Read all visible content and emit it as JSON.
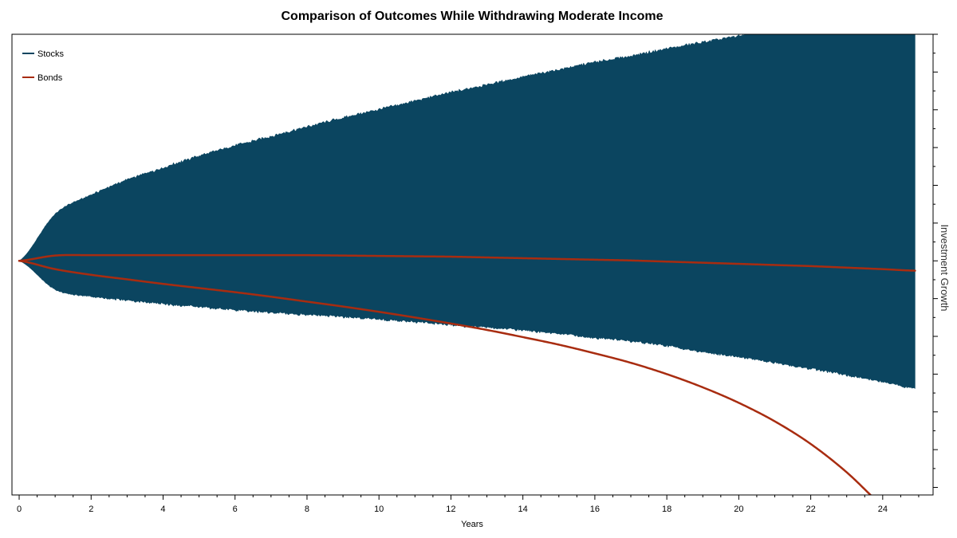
{
  "chart_data": {
    "type": "area",
    "title": "Comparison of Outcomes While Withdrawing Moderate Income",
    "xlabel": "Years",
    "ylabel": "Investment Growth",
    "xlim": [
      -0.2,
      25.4
    ],
    "ylim": [
      -6.2,
      6.0
    ],
    "x_ticks_major": [
      0,
      2,
      4,
      6,
      8,
      10,
      12,
      14,
      16,
      18,
      20,
      22,
      24
    ],
    "x_tick_labels": [
      "0",
      "2",
      "4",
      "6",
      "8",
      "10",
      "12",
      "14",
      "16",
      "18",
      "20",
      "22",
      "24"
    ],
    "y_ticks": [
      -6,
      -5,
      -4,
      -3,
      -2,
      -1,
      0,
      1,
      2,
      3,
      4,
      5,
      6
    ],
    "y_tick_labels_visible": false,
    "y_axis_side": "right",
    "grid": false,
    "legend": {
      "position": "top-left",
      "entries": [
        {
          "name": "Stocks",
          "color": "#0b4560"
        },
        {
          "name": "Bonds",
          "color": "#a82c10"
        }
      ]
    },
    "series": [
      {
        "name": "Stocks",
        "kind": "band",
        "color": "#0b4560",
        "x": [
          0,
          1,
          2,
          3,
          4,
          5,
          6,
          7,
          8,
          9,
          10,
          11,
          12,
          13,
          14,
          15,
          16,
          17,
          18,
          19,
          20,
          21,
          22,
          23,
          24,
          24.9
        ],
        "upper": [
          0,
          1.24,
          1.75,
          2.15,
          2.47,
          2.78,
          3.05,
          3.3,
          3.55,
          3.79,
          4.01,
          4.24,
          4.46,
          4.67,
          4.87,
          5.07,
          5.26,
          5.43,
          5.62,
          5.79,
          5.96,
          6.14,
          6.3,
          6.46,
          6.63,
          6.78
        ],
        "lower": [
          0,
          -0.76,
          -0.95,
          -1.05,
          -1.14,
          -1.22,
          -1.3,
          -1.37,
          -1.43,
          -1.49,
          -1.55,
          -1.62,
          -1.7,
          -1.77,
          -1.84,
          -1.93,
          -2.04,
          -2.13,
          -2.25,
          -2.42,
          -2.55,
          -2.7,
          -2.86,
          -3.03,
          -3.2,
          -3.38
        ]
      },
      {
        "name": "Bonds",
        "kind": "line",
        "color": "#a82c10",
        "x": [
          0,
          1,
          2,
          3,
          4,
          5,
          6,
          7,
          8,
          9,
          10,
          11,
          12,
          13,
          14,
          15,
          16,
          17,
          18,
          19,
          20,
          21,
          22,
          23,
          24,
          24.9
        ],
        "values": [
          0,
          0.14,
          0.15,
          0.15,
          0.15,
          0.15,
          0.15,
          0.15,
          0.15,
          0.14,
          0.13,
          0.12,
          0.11,
          0.09,
          0.07,
          0.05,
          0.03,
          0.01,
          -0.02,
          -0.05,
          -0.08,
          -0.11,
          -0.14,
          -0.18,
          -0.22,
          -0.26
        ]
      },
      {
        "name": "Bonds",
        "kind": "line",
        "color": "#a82c10",
        "x": [
          0,
          1,
          2,
          3,
          4,
          5,
          6,
          7,
          8,
          9,
          10,
          11,
          12,
          13,
          14,
          15,
          16,
          17,
          18,
          19,
          20,
          21,
          22,
          23,
          24,
          24.9
        ],
        "values": [
          0,
          -0.22,
          -0.37,
          -0.49,
          -0.61,
          -0.72,
          -0.83,
          -0.95,
          -1.08,
          -1.21,
          -1.35,
          -1.5,
          -1.66,
          -1.83,
          -2.02,
          -2.22,
          -2.45,
          -2.7,
          -3.0,
          -3.35,
          -3.76,
          -4.25,
          -4.85,
          -5.6,
          -6.5,
          -7.25
        ]
      }
    ]
  }
}
